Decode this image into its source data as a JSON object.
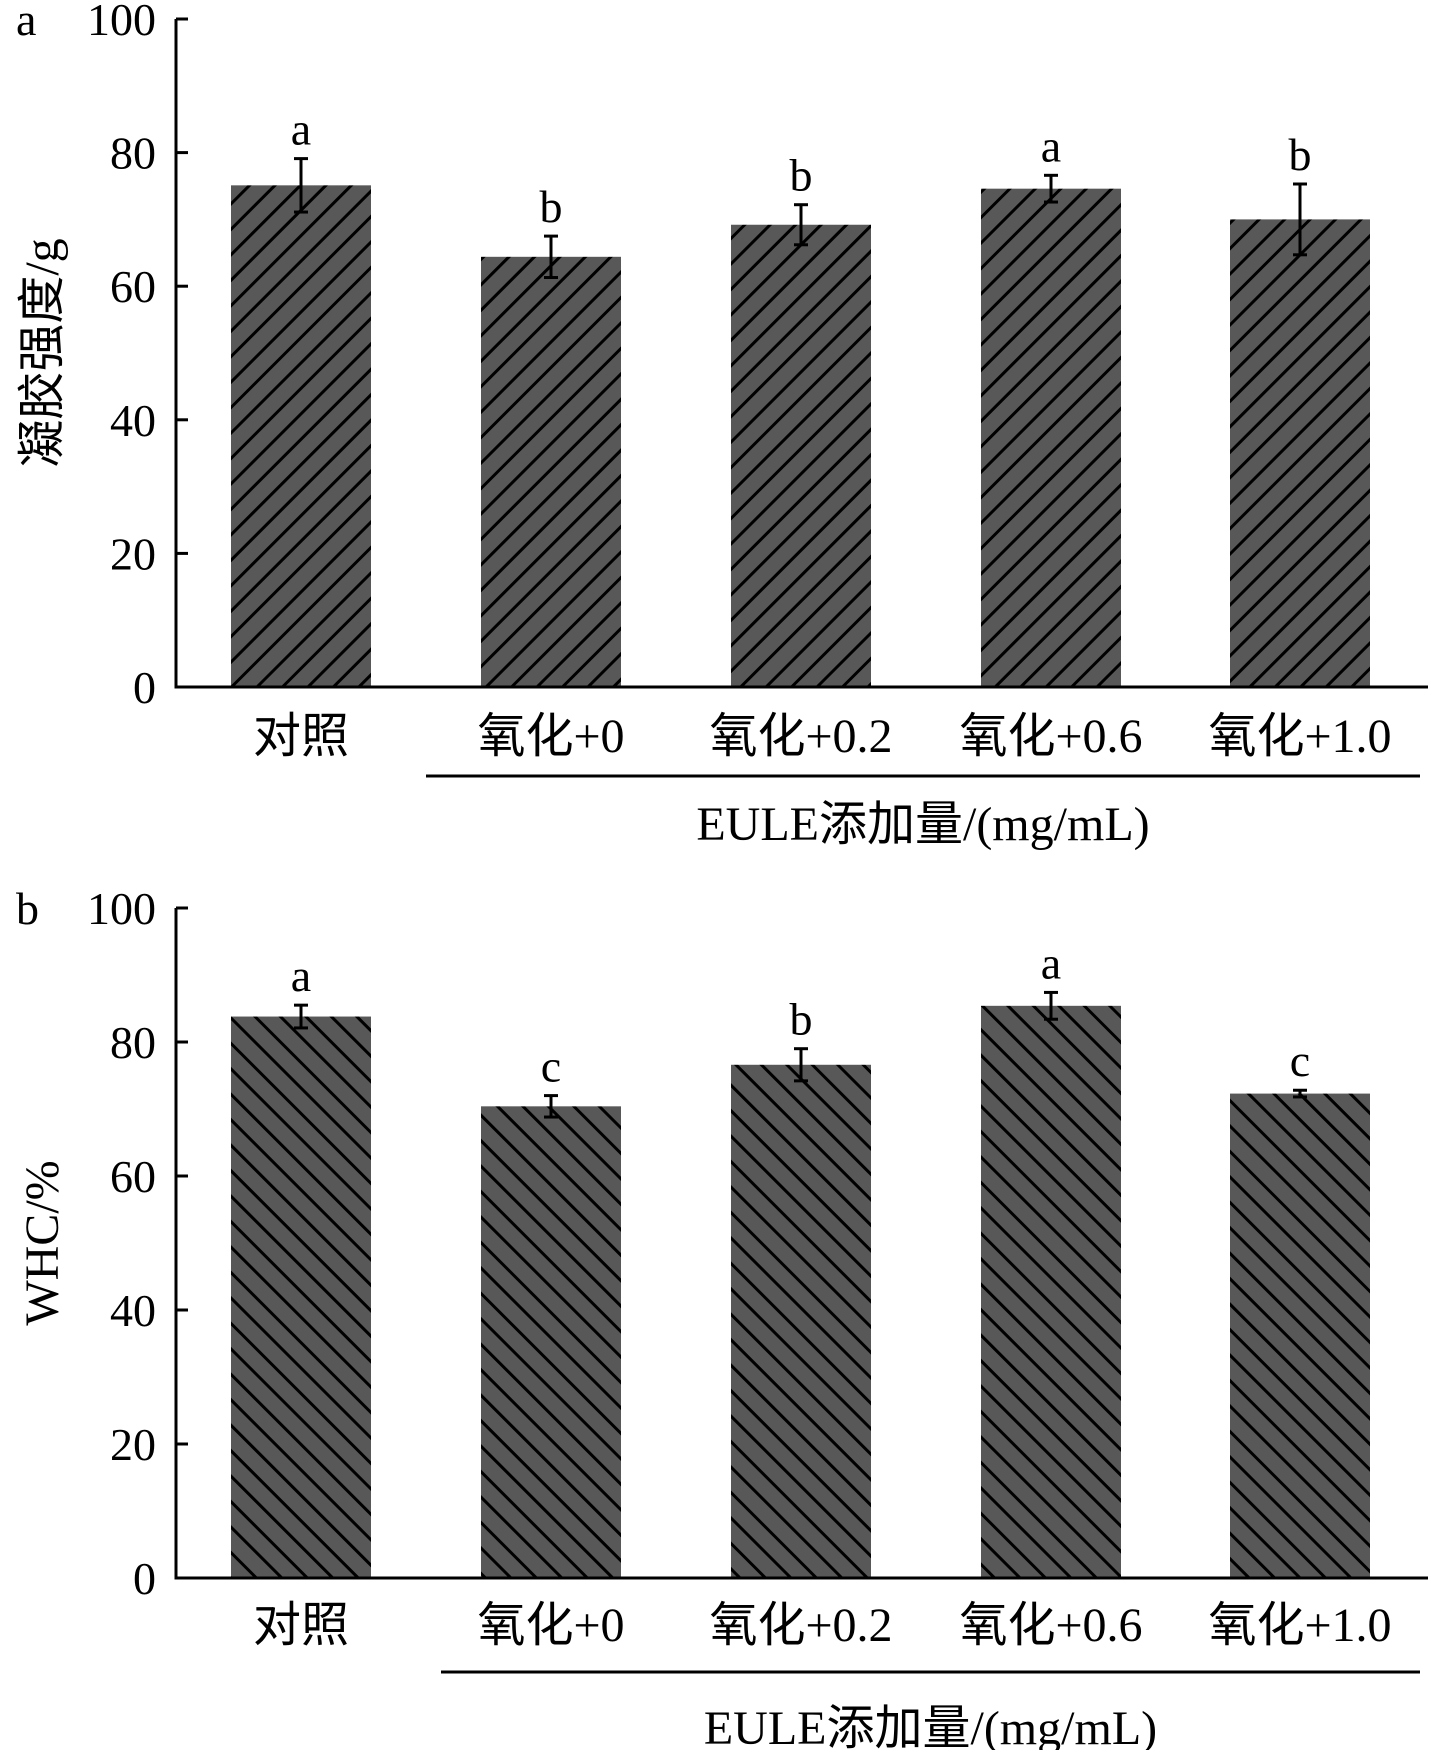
{
  "chart_data": [
    {
      "type": "bar",
      "panel_label": "a",
      "title": "",
      "ylabel": "凝胶强度/g",
      "xlabel": "EULE添加量/(mg/mL)",
      "ylim": [
        0,
        100
      ],
      "yticks": [
        "0",
        "20",
        "40",
        "60",
        "80",
        "100"
      ],
      "categories": [
        "对照",
        "氧化+0",
        "氧化+0.2",
        "氧化+0.6",
        "氧化+1.0"
      ],
      "values": [
        75.1,
        64.4,
        69.2,
        74.6,
        70.0
      ],
      "errors": [
        4.0,
        3.1,
        3.0,
        2.0,
        5.3
      ],
      "significance": [
        "a",
        "b",
        "b",
        "a",
        "b"
      ],
      "hatch": "forward-diagonal",
      "colors": {
        "bar": "#585858",
        "hatch": "#000000"
      },
      "grid": false
    },
    {
      "type": "bar",
      "panel_label": "b",
      "title": "",
      "ylabel": "WHC/%",
      "xlabel": "EULE添加量/(mg/mL)",
      "ylim": [
        0,
        100
      ],
      "yticks": [
        "0",
        "20",
        "40",
        "60",
        "80",
        "100"
      ],
      "categories": [
        "对照",
        "氧化+0",
        "氧化+0.2",
        "氧化+0.6",
        "氧化+1.0"
      ],
      "values": [
        83.8,
        70.4,
        76.6,
        85.4,
        72.3
      ],
      "errors": [
        1.7,
        1.6,
        2.4,
        2.0,
        0.5
      ],
      "significance": [
        "a",
        "c",
        "b",
        "a",
        "c"
      ],
      "hatch": "back-diagonal",
      "colors": {
        "bar": "#585858",
        "hatch": "#000000"
      },
      "grid": false
    }
  ]
}
